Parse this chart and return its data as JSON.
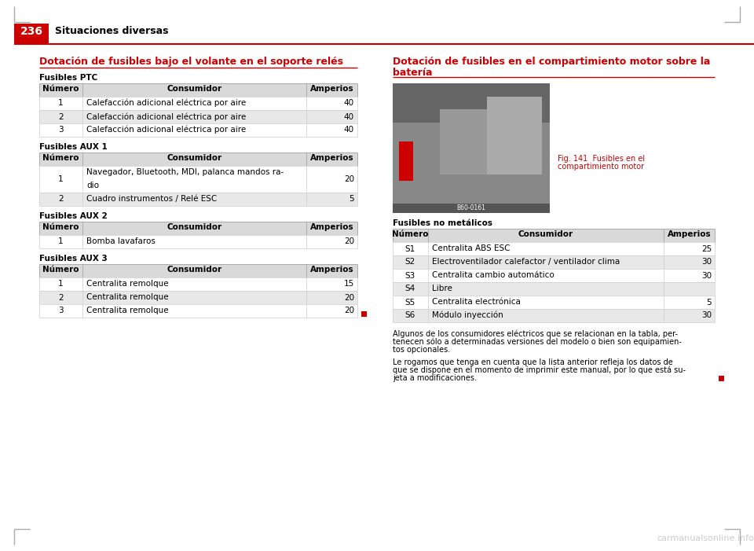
{
  "page_number": "236",
  "page_title": "Situaciones diversas",
  "bg_color": "#ffffff",
  "header_red": "#cc0000",
  "line_color": "#cc0000",
  "section_left_title": "Dotación de fusibles bajo el volante en el soporte relés",
  "section_right_title_line1": "Dotación de fusibles en el compartimiento motor sobre la",
  "section_right_title_line2": "batería",
  "table_header_bg": "#d9d9d9",
  "table_alt_row_bg": "#efefef",
  "table_white_row_bg": "#ffffff",
  "col_header_numero": "Número",
  "col_header_consumidor": "Consumidor",
  "col_header_amperios": "Amperios",
  "ptc_title": "Fusibles PTC",
  "ptc_rows": [
    [
      "1",
      "Calefacción adicional eléctrica por aire",
      "40"
    ],
    [
      "2",
      "Calefacción adicional eléctrica por aire",
      "40"
    ],
    [
      "3",
      "Calefacción adicional eléctrica por aire",
      "40"
    ]
  ],
  "aux1_title": "Fusibles AUX 1",
  "aux1_rows": [
    [
      "1",
      "Navegador, Bluetooth, MDI, palanca mandos ra-\ndio",
      "20"
    ],
    [
      "2",
      "Cuadro instrumentos / Relé ESC",
      "5"
    ]
  ],
  "aux2_title": "Fusibles AUX 2",
  "aux2_rows": [
    [
      "1",
      "Bomba lavafaros",
      "20"
    ]
  ],
  "aux3_title": "Fusibles AUX 3",
  "aux3_rows": [
    [
      "1",
      "Centralita remolque",
      "15"
    ],
    [
      "2",
      "Centralita remolque",
      "20"
    ],
    [
      "3",
      "Centralita remolque",
      "20"
    ]
  ],
  "right_no_metalicos_title": "Fusibles no metálicos",
  "right_rows": [
    [
      "S1",
      "Centralita ABS ESC",
      "25"
    ],
    [
      "S2",
      "Electroventilador calefactor / ventilador clima",
      "30"
    ],
    [
      "S3",
      "Centralita cambio automático",
      "30"
    ],
    [
      "S4",
      "Libre",
      ""
    ],
    [
      "S5",
      "Centralita electrónica",
      "5"
    ],
    [
      "S6",
      "Módulo inyección",
      "30"
    ]
  ],
  "fig_caption_line1": "Fig. 141  Fusibles en el",
  "fig_caption_line2": "compartimiento motor",
  "footnote1_line1": "Algunos de los consumidores eléctricos que se relacionan en la tabla, per-",
  "footnote1_line2": "tenecen sólo a determinadas versiones del modelo o bien son equipamien-",
  "footnote1_line3": "tos opcionales.",
  "footnote2_line1": "Le rogamos que tenga en cuenta que la lista anterior refleja los datos de",
  "footnote2_line2": "que se dispone en el momento de imprimir este manual, por lo que está su-",
  "footnote2_line3": "jeta a modificaciones.",
  "red_square_color": "#cc0000",
  "watermark": "carmanualsonline.info"
}
